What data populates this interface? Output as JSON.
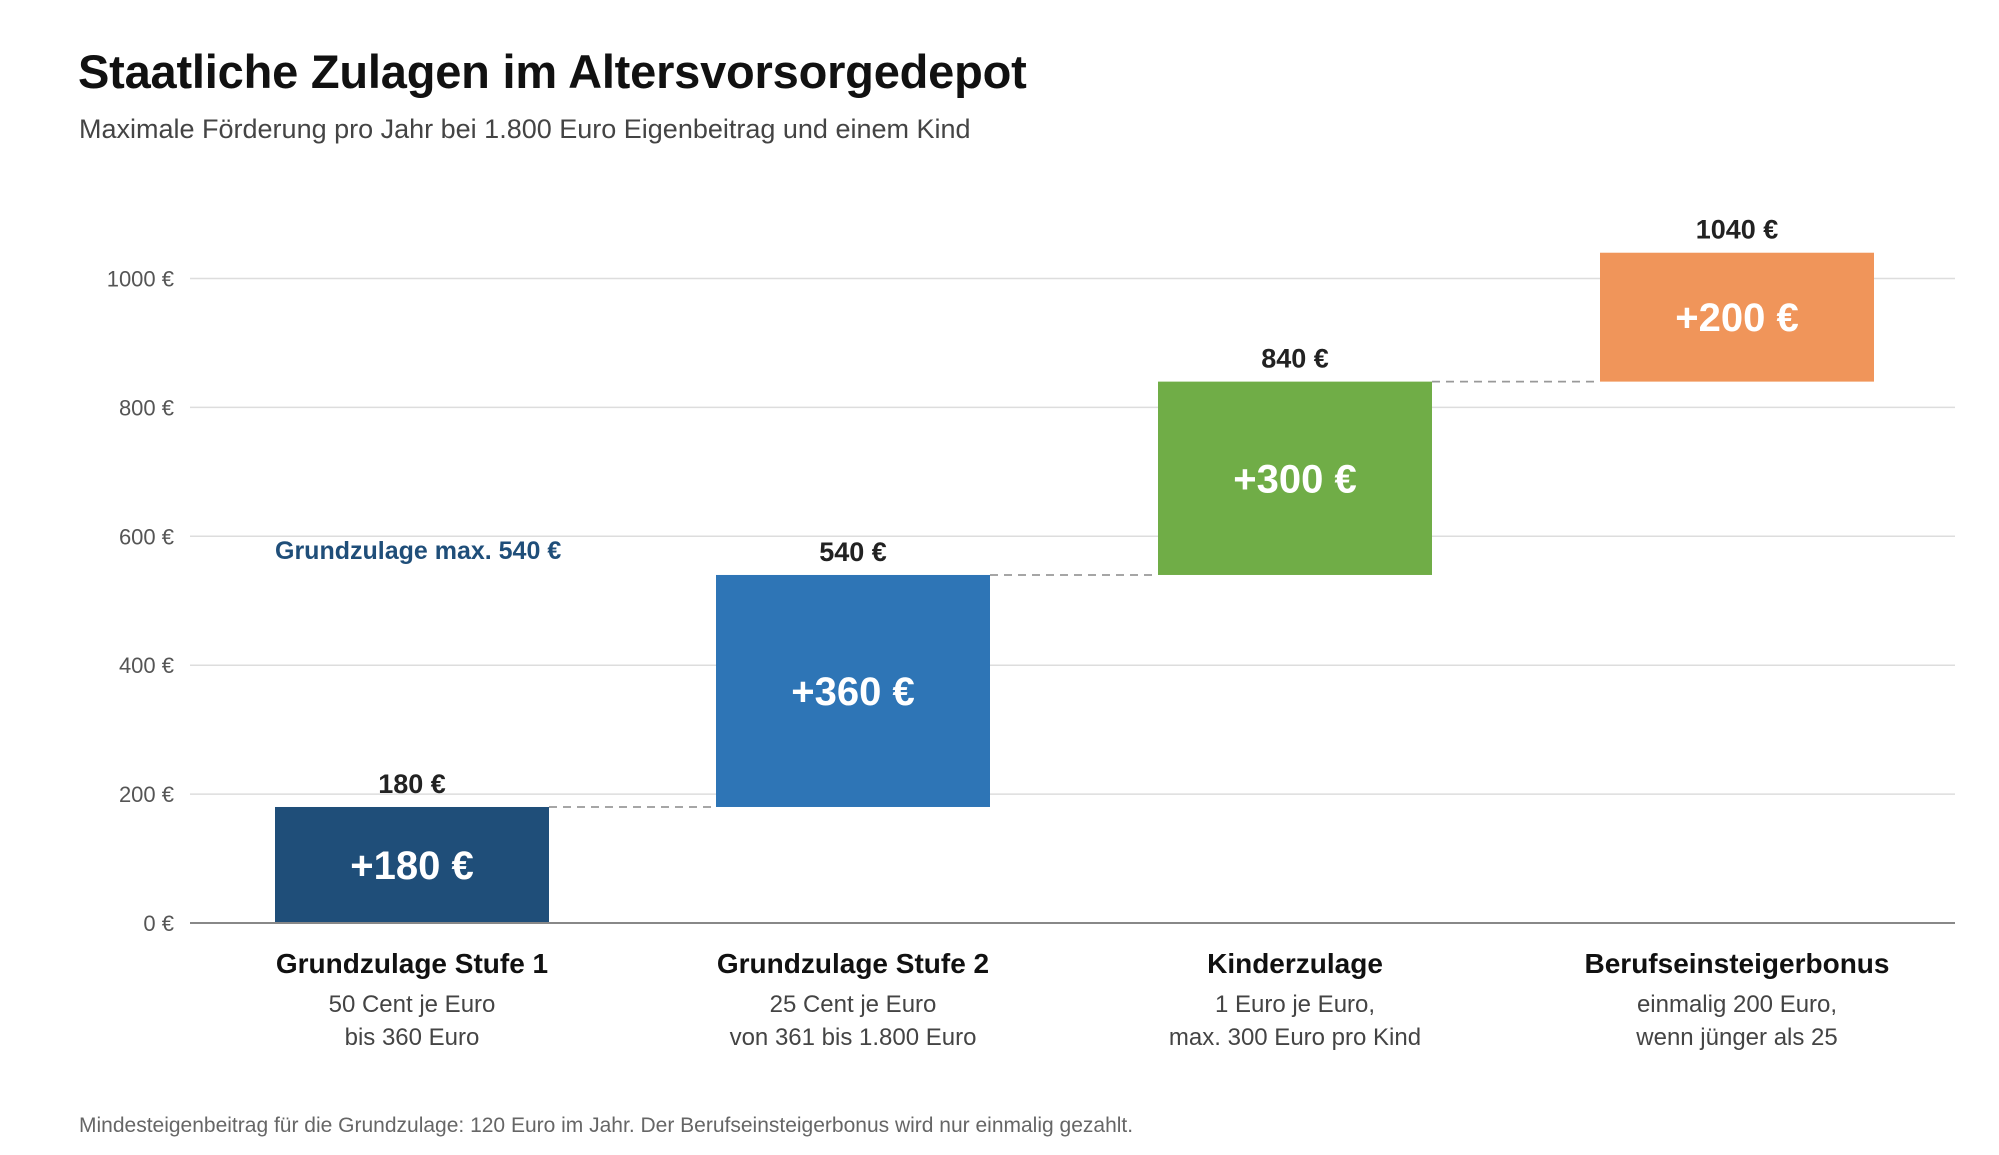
{
  "header": {
    "title": "Staatliche Zulagen im Altersvorsorgedepot",
    "subtitle": "Maximale Förderung pro Jahr bei 1.800 Euro Eigenbeitrag und einem Kind"
  },
  "footnote": "Mindesteigenbeitrag für die Grundzulage: 120 Euro im Jahr. Der Berufseinsteigerbonus wird nur einmalig gezahlt.",
  "chart_data": {
    "type": "bar",
    "subtype": "waterfall",
    "grid": true,
    "ylim": [
      0,
      1040
    ],
    "y_ticks": [
      0,
      200,
      400,
      600,
      800,
      1000
    ],
    "y_tick_labels": [
      "0 €",
      "200 €",
      "400 €",
      "600 €",
      "800 €",
      "1000 €"
    ],
    "categories": [
      {
        "name": "Grundzulage Stufe 1",
        "desc": [
          "50 Cent je Euro",
          "bis 360 Euro"
        ],
        "base": 0,
        "value": 180,
        "total": 180,
        "value_label": "+180 €",
        "total_label": "180 €",
        "color": "#1f4e79"
      },
      {
        "name": "Grundzulage Stufe 2",
        "desc": [
          "25 Cent je Euro",
          "von 361 bis 1.800 Euro"
        ],
        "base": 180,
        "value": 360,
        "total": 540,
        "value_label": "+360 €",
        "total_label": "540 €",
        "color": "#2e75b6"
      },
      {
        "name": "Kinderzulage",
        "desc": [
          "1 Euro je Euro,",
          "max. 300 Euro pro Kind"
        ],
        "base": 540,
        "value": 300,
        "total": 840,
        "value_label": "+300 €",
        "total_label": "840 €",
        "color": "#70ad47"
      },
      {
        "name": "Berufseinsteigerbonus",
        "desc": [
          "einmalig 200 Euro,",
          "wenn jünger als 25"
        ],
        "base": 840,
        "value": 200,
        "total": 1040,
        "value_label": "+200 €",
        "total_label": "1040 €",
        "color": "#f0955a"
      }
    ],
    "annotation": {
      "text": "Grundzulage max. 540 €",
      "y": 540,
      "color": "#1f4e79"
    }
  }
}
